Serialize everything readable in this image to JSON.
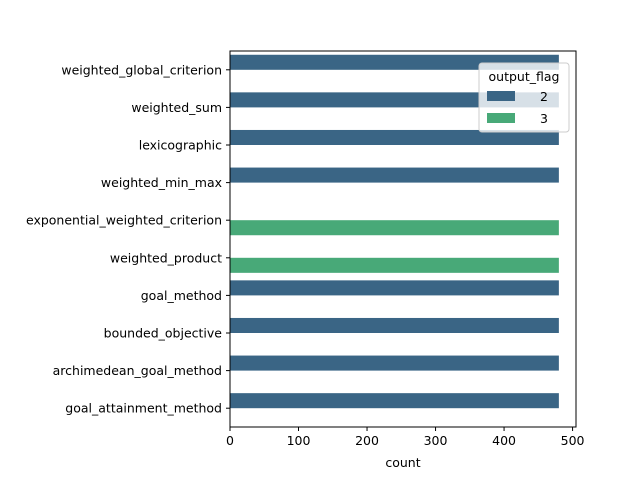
{
  "chart_data": {
    "type": "bar",
    "orientation": "horizontal",
    "title": "",
    "xlabel": "count",
    "ylabel": "",
    "xlim": [
      0,
      505
    ],
    "x_ticks": [
      0,
      100,
      200,
      300,
      400,
      500
    ],
    "grid": false,
    "categories": [
      "weighted_global_criterion",
      "weighted_sum",
      "lexicographic",
      "weighted_min_max",
      "exponential_weighted_criterion",
      "weighted_product",
      "goal_method",
      "bounded_objective",
      "archimedean_goal_method",
      "goal_attainment_method"
    ],
    "series": [
      {
        "name": "2",
        "color": "#3a6585",
        "values": [
          480,
          480,
          480,
          480,
          0,
          0,
          480,
          480,
          480,
          480
        ]
      },
      {
        "name": "3",
        "color": "#48a978",
        "values": [
          0,
          0,
          0,
          0,
          480,
          480,
          0,
          0,
          0,
          0
        ]
      }
    ],
    "legend": {
      "title": "output_flag",
      "placement": "top-right"
    }
  }
}
